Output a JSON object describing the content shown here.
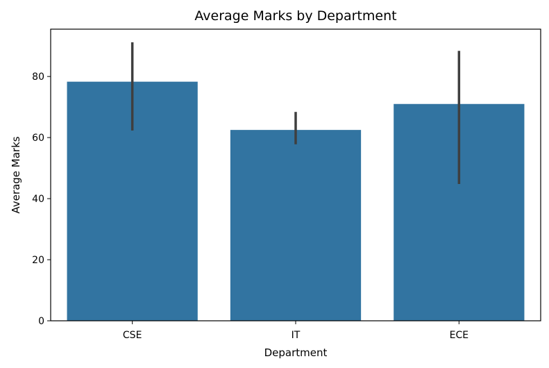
{
  "chart_data": {
    "type": "bar",
    "title": "Average Marks by Department",
    "xlabel": "Department",
    "ylabel": "Average Marks",
    "categories": [
      "CSE",
      "IT",
      "ECE"
    ],
    "values": [
      78.3,
      62.5,
      71.0
    ],
    "error_low": [
      62.3,
      57.8,
      44.8
    ],
    "error_high": [
      91.2,
      68.4,
      88.4
    ],
    "ylim": [
      0,
      95.5
    ],
    "yticks": [
      0,
      20,
      40,
      60,
      80
    ],
    "grid": false,
    "legend": "none",
    "colors": {
      "bar": "#3274a1",
      "errorbar": "#3f3f3f",
      "axis": "#000000"
    }
  }
}
